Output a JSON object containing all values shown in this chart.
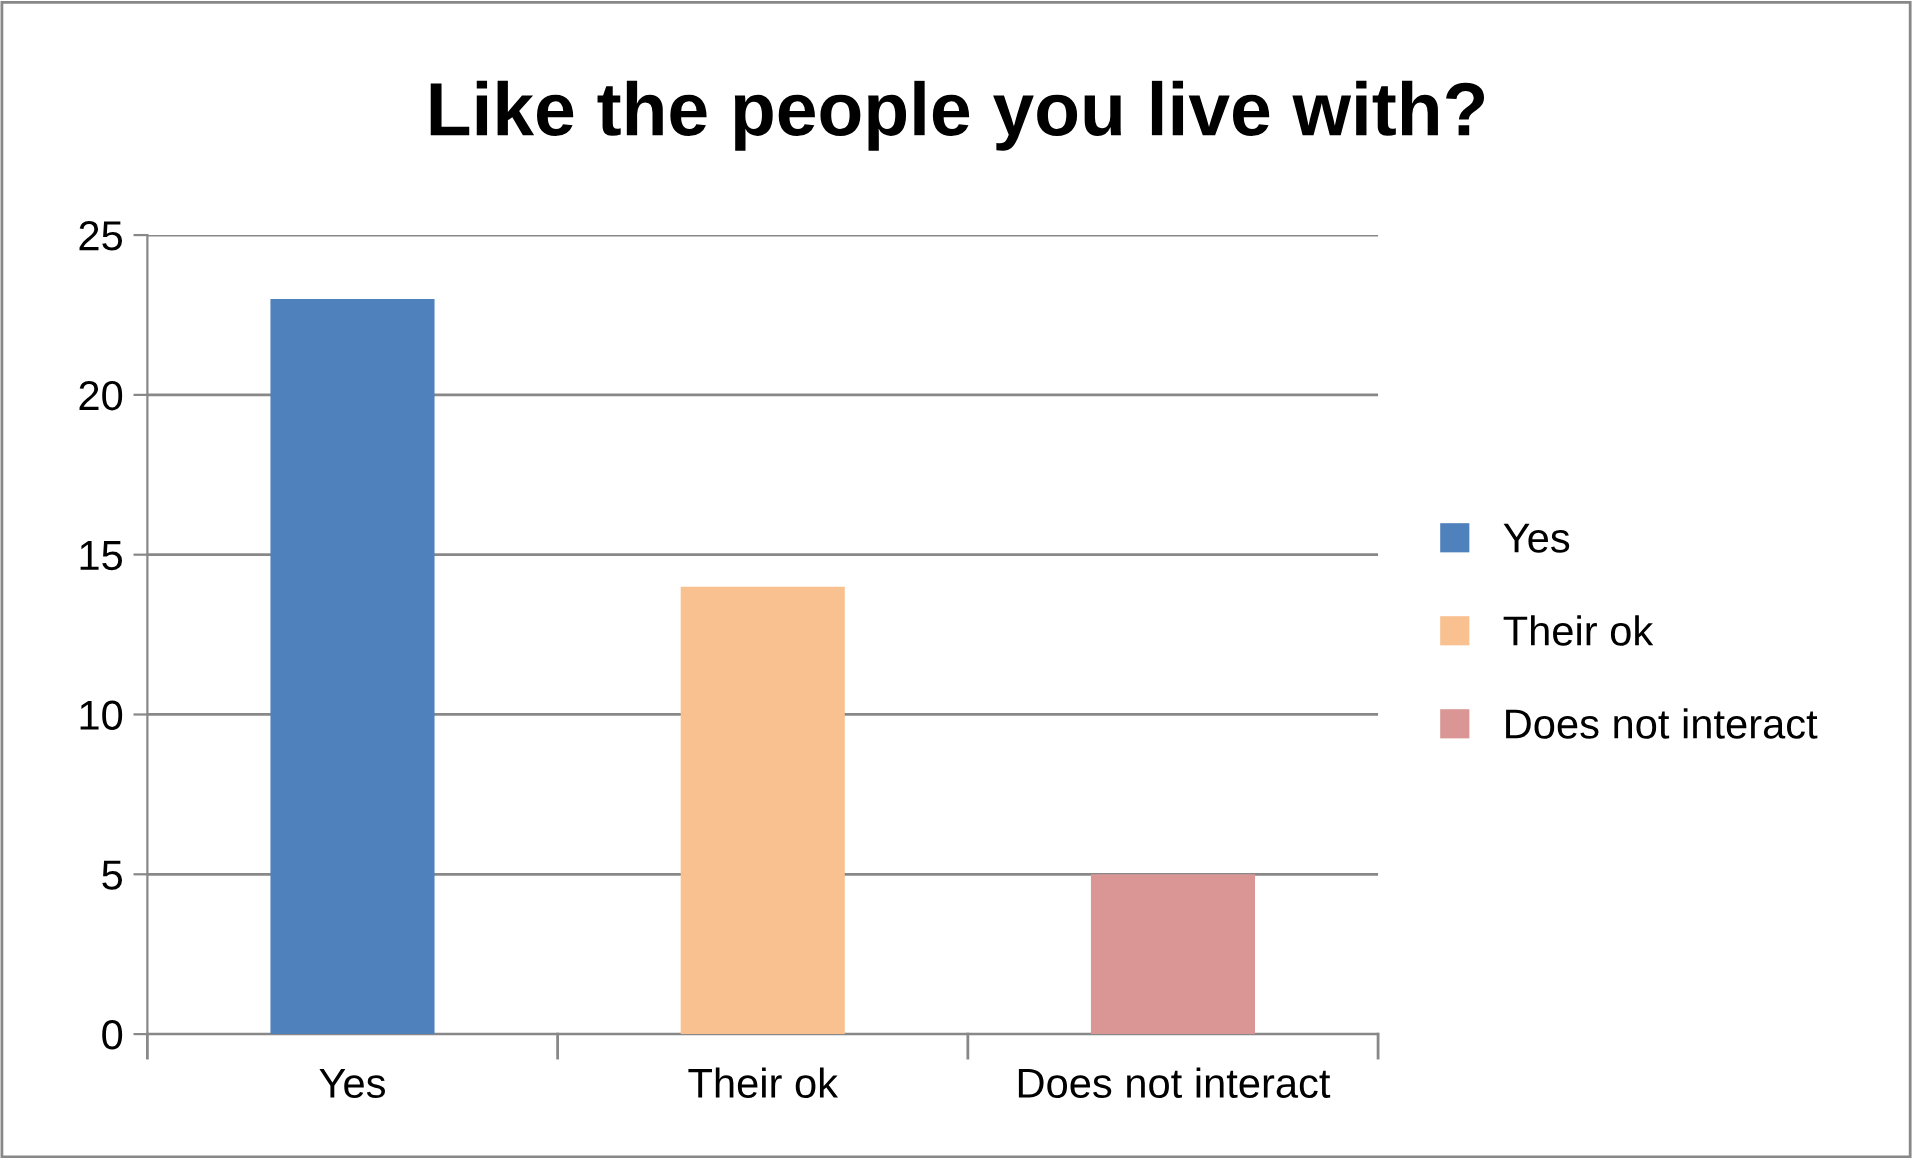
{
  "chart_data": {
    "type": "bar",
    "title": "Like the people you live with?",
    "categories": [
      "Yes",
      "Their ok",
      "Does not interact"
    ],
    "series": [
      {
        "name": "Yes",
        "color": "#4f81bd",
        "values": [
          23,
          null,
          null
        ]
      },
      {
        "name": "Their ok",
        "color": "#f9c090",
        "values": [
          null,
          14,
          null
        ]
      },
      {
        "name": "Does not interact",
        "color": "#d99694",
        "values": [
          null,
          null,
          5
        ]
      }
    ],
    "ylim": [
      0,
      25
    ],
    "yticks": [
      0,
      5,
      10,
      15,
      20,
      25
    ],
    "grid": "y",
    "legend": "right"
  }
}
